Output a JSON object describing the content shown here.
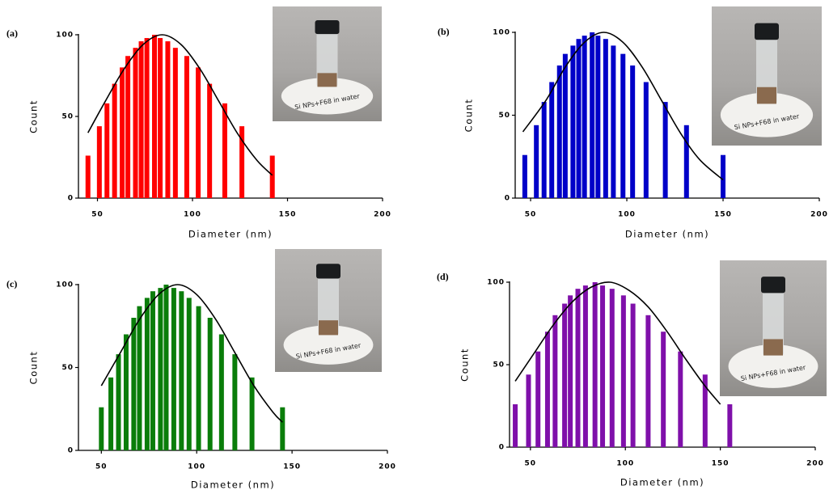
{
  "chart_data": [
    {
      "type": "bar",
      "label": "(a)",
      "x_label": "Diameter (nm)",
      "y_label": "Count",
      "photo_text": "Si NPs+F68 in water",
      "xlim": [
        40,
        200
      ],
      "xticks": [
        50,
        100,
        150,
        200
      ],
      "ylim": [
        0,
        100
      ],
      "yticks": [
        0,
        50,
        100
      ],
      "color": "#ff0000",
      "x": [
        45,
        51,
        55,
        59,
        63,
        66,
        70,
        73,
        76,
        80,
        83,
        87,
        91,
        97,
        103,
        109,
        117,
        126,
        142
      ],
      "values": [
        26,
        44,
        58,
        70,
        80,
        87,
        92,
        96,
        98,
        100,
        98,
        96,
        92,
        87,
        80,
        70,
        58,
        44,
        26
      ],
      "fit_color": "#000000",
      "fit_x": [
        45,
        54,
        64,
        74,
        84,
        94,
        104,
        114,
        124,
        134,
        142
      ],
      "fit_values": [
        40,
        59,
        79,
        94,
        100,
        94,
        79,
        59,
        39,
        23,
        14
      ]
    },
    {
      "type": "bar",
      "label": "(b)",
      "x_label": "Diameter (nm)",
      "y_label": "Count",
      "photo_text": "Si NPs+F68 in water",
      "xlim": [
        42,
        200
      ],
      "xticks": [
        50,
        100,
        150,
        200
      ],
      "ylim": [
        0,
        100
      ],
      "yticks": [
        0,
        50,
        100
      ],
      "color": "#0000c8",
      "x": [
        47,
        53,
        57,
        61,
        65,
        68,
        72,
        75,
        78,
        82,
        85,
        89,
        93,
        98,
        103,
        110,
        120,
        131,
        150
      ],
      "values": [
        26,
        44,
        58,
        70,
        80,
        87,
        92,
        96,
        98,
        100,
        98,
        96,
        92,
        87,
        80,
        70,
        58,
        44,
        26
      ],
      "fit_color": "#000000",
      "fit_x": [
        46,
        58,
        68,
        78,
        88,
        98,
        108,
        118,
        128,
        138,
        150
      ],
      "fit_values": [
        40,
        59,
        79,
        94,
        100,
        94,
        79,
        59,
        39,
        23,
        11
      ]
    },
    {
      "type": "bar",
      "label": "(c)",
      "x_label": "Diameter (nm)",
      "y_label": "Count",
      "photo_text": "Si NPs+F68 in water",
      "xlim": [
        38,
        200
      ],
      "xticks": [
        50,
        100,
        150,
        200
      ],
      "ylim": [
        0,
        100
      ],
      "yticks": [
        0,
        50,
        100
      ],
      "color": "#0a7d0a",
      "x": [
        50,
        55,
        59,
        63,
        67,
        70,
        74,
        77,
        81,
        84,
        88,
        92,
        96,
        101,
        107,
        113,
        120,
        129,
        145
      ],
      "values": [
        26,
        44,
        58,
        70,
        80,
        87,
        92,
        96,
        98,
        100,
        98,
        96,
        92,
        87,
        80,
        70,
        58,
        44,
        26
      ],
      "fit_color": "#000000",
      "fit_x": [
        50,
        60,
        70,
        80,
        90,
        100,
        110,
        120,
        130,
        140,
        145
      ],
      "fit_values": [
        39,
        59,
        79,
        94,
        100,
        94,
        79,
        59,
        39,
        23,
        17
      ]
    },
    {
      "type": "bar",
      "label": "(d)",
      "x_label": "Diameter (nm)",
      "y_label": "Count",
      "photo_text": "Si NPs+F68 in water",
      "xlim": [
        39,
        200
      ],
      "xticks": [
        50,
        100,
        150,
        200
      ],
      "ylim": [
        0,
        100
      ],
      "yticks": [
        0,
        50,
        100
      ],
      "color": "#7f10aa",
      "x": [
        42,
        49,
        54,
        59,
        63,
        68,
        71,
        75,
        79,
        84,
        88,
        93,
        99,
        104,
        112,
        120,
        129,
        142,
        155
      ],
      "values": [
        26,
        44,
        58,
        70,
        80,
        87,
        92,
        96,
        98,
        100,
        98,
        96,
        92,
        87,
        80,
        70,
        58,
        44,
        26
      ],
      "fit_color": "#000000",
      "fit_x": [
        42,
        52,
        62,
        72,
        82,
        92,
        102,
        112,
        122,
        132,
        142,
        150
      ],
      "fit_values": [
        40,
        57,
        74,
        88,
        97,
        100,
        95,
        85,
        70,
        53,
        37,
        26
      ]
    }
  ]
}
